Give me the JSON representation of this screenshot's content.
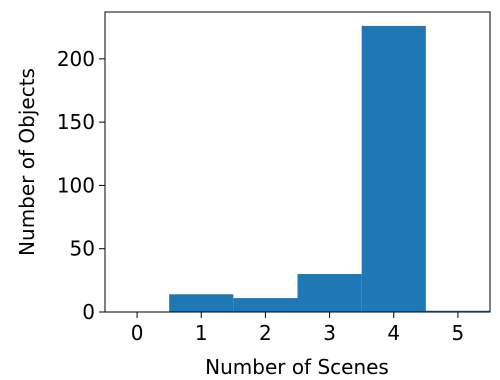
{
  "chart_data": {
    "type": "bar",
    "categories": [
      "0",
      "1",
      "2",
      "3",
      "4",
      "5"
    ],
    "values": [
      0,
      14,
      11,
      30,
      226,
      1
    ],
    "title": "",
    "xlabel": "Number of Scenes",
    "ylabel": "Number of Objects",
    "xlim": [
      -0.5,
      5.5
    ],
    "ylim": [
      0,
      237
    ],
    "x_ticks": [
      "0",
      "1",
      "2",
      "3",
      "4",
      "5"
    ],
    "y_ticks": [
      "0",
      "50",
      "100",
      "150",
      "200"
    ],
    "y_tick_values": [
      0,
      50,
      100,
      150,
      200
    ],
    "bar_color": "#1f77b4",
    "grid": false,
    "legend": "none"
  }
}
